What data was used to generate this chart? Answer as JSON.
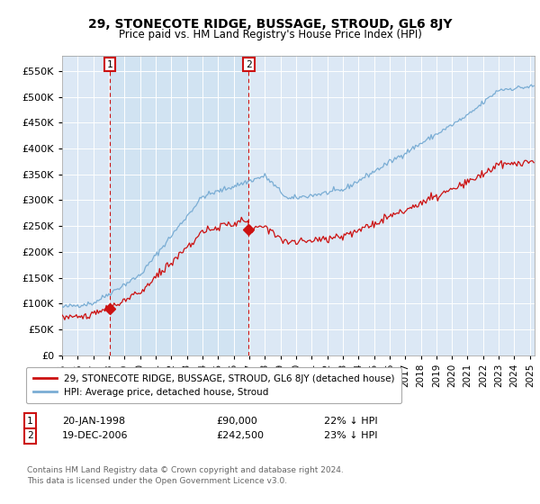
{
  "title": "29, STONECOTE RIDGE, BUSSAGE, STROUD, GL6 8JY",
  "subtitle": "Price paid vs. HM Land Registry's House Price Index (HPI)",
  "ylim": [
    0,
    580000
  ],
  "yticks": [
    0,
    50000,
    100000,
    150000,
    200000,
    250000,
    300000,
    350000,
    400000,
    450000,
    500000,
    550000
  ],
  "xlim_start": 1995.0,
  "xlim_end": 2025.3,
  "hpi_color": "#7aadd4",
  "price_color": "#cc1111",
  "bg_color": "#dce8f5",
  "sale1_x": 1998.05,
  "sale1_y": 90000,
  "sale2_x": 2006.97,
  "sale2_y": 242500,
  "legend_house": "29, STONECOTE RIDGE, BUSSAGE, STROUD, GL6 8JY (detached house)",
  "legend_hpi": "HPI: Average price, detached house, Stroud",
  "note1_label": "1",
  "note1_date": "20-JAN-1998",
  "note1_price": "£90,000",
  "note1_hpi": "22% ↓ HPI",
  "note2_label": "2",
  "note2_date": "19-DEC-2006",
  "note2_price": "£242,500",
  "note2_hpi": "23% ↓ HPI",
  "footer": "Contains HM Land Registry data © Crown copyright and database right 2024.\nThis data is licensed under the Open Government Licence v3.0."
}
